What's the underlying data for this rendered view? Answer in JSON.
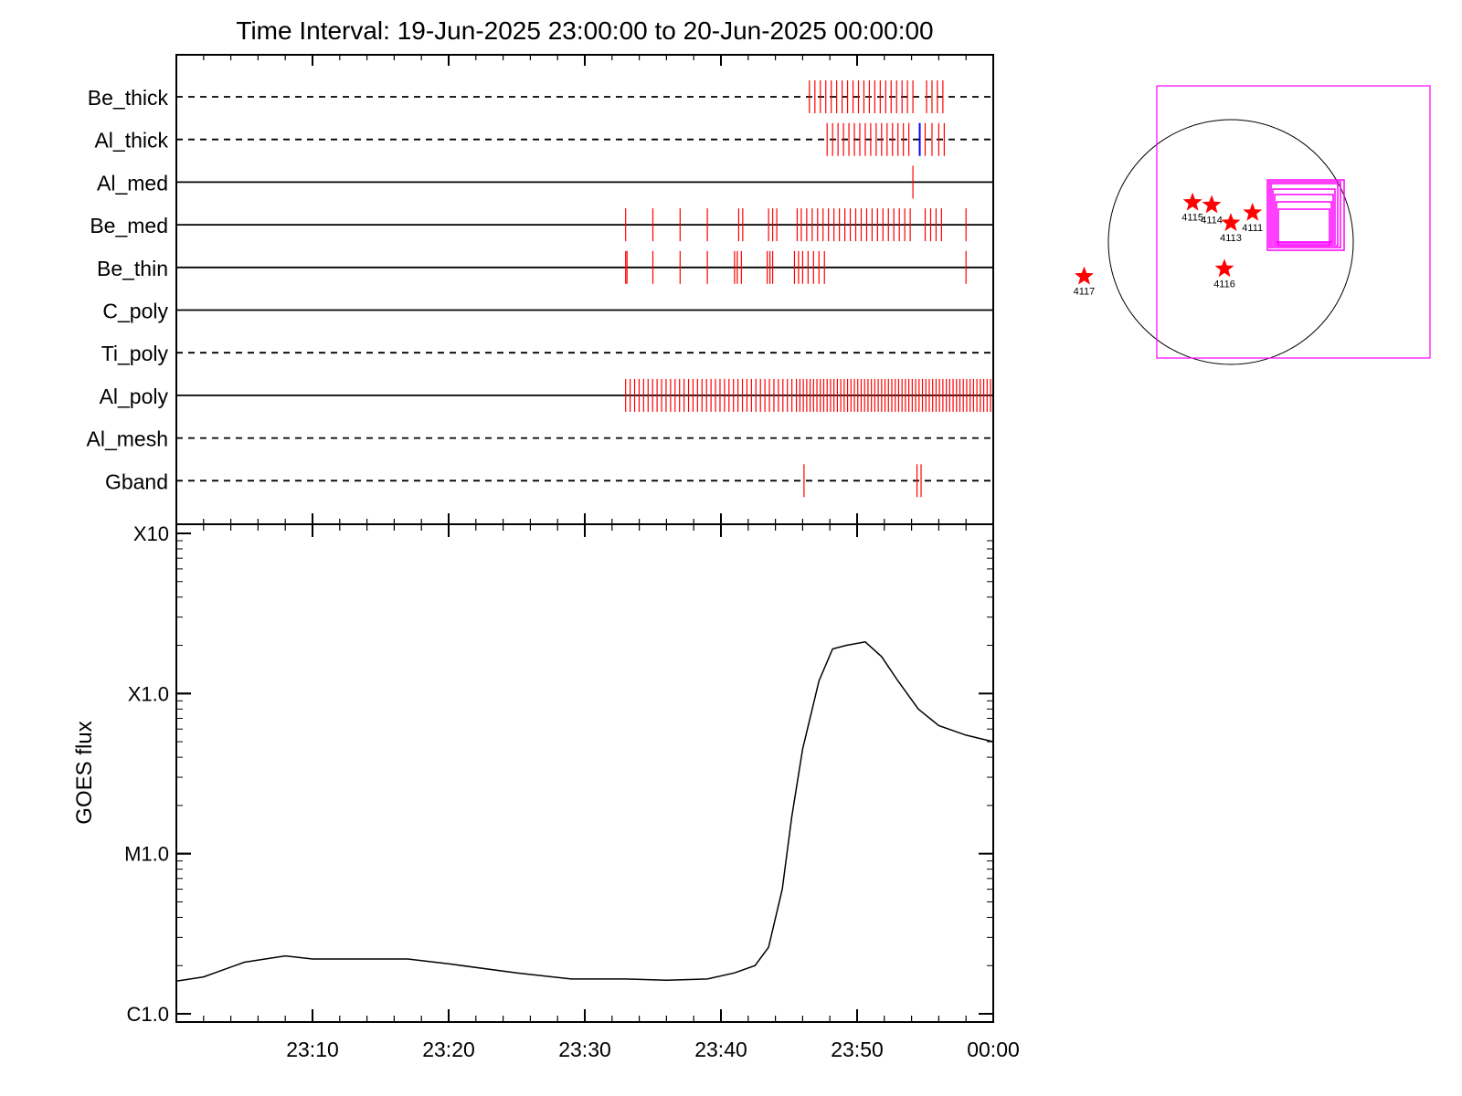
{
  "title": "Time Interval: 19-Jun-2025 23:00:00 to 20-Jun-2025 00:00:00",
  "chart_data": [
    {
      "type": "timeline",
      "panel": "filter-timeline",
      "xlim": [
        "23:00",
        "00:00"
      ],
      "rows": [
        {
          "label": "Be_thick",
          "line": "dashed",
          "ticks": [
            46.5,
            46.9,
            47.3,
            47.7,
            48.1,
            48.5,
            48.9,
            49.3,
            49.7,
            50.1,
            50.5,
            50.9,
            51.3,
            51.7,
            52.1,
            52.5,
            52.9,
            53.3,
            53.7,
            54.1,
            55.1,
            55.5,
            55.9,
            56.3
          ]
        },
        {
          "label": "Al_thick",
          "line": "dashed",
          "ticks": [
            47.8,
            48.2,
            48.6,
            49.0,
            49.4,
            49.8,
            50.2,
            50.6,
            51.0,
            51.4,
            51.8,
            52.2,
            52.6,
            53.0,
            53.4,
            53.8,
            55.0,
            55.5,
            56.0,
            56.4
          ],
          "highlight_ticks": [
            54.6
          ]
        },
        {
          "label": "Al_med",
          "line": "solid",
          "ticks": [
            54.1
          ]
        },
        {
          "label": "Be_med",
          "line": "solid",
          "ticks": [
            33.0,
            35.0,
            37.0,
            39.0,
            41.3,
            41.6,
            43.5,
            43.8,
            44.1,
            45.6,
            45.9,
            46.3,
            46.7,
            47.1,
            47.5,
            47.9,
            48.3,
            48.7,
            49.1,
            49.5,
            49.9,
            50.3,
            50.7,
            51.1,
            51.5,
            51.9,
            52.3,
            52.7,
            53.1,
            53.5,
            53.9,
            55.0,
            55.4,
            55.8,
            56.2,
            58.0
          ]
        },
        {
          "label": "Be_thin",
          "line": "solid",
          "ticks": [
            33.0,
            33.1,
            35.0,
            37.0,
            39.0,
            41.0,
            41.2,
            41.5,
            43.4,
            43.6,
            43.8,
            45.4,
            45.7,
            46.0,
            46.4,
            46.8,
            47.2,
            47.6,
            58.0
          ]
        },
        {
          "label": "C_poly",
          "line": "solid",
          "ticks": []
        },
        {
          "label": "Ti_poly",
          "line": "dashed",
          "ticks": []
        },
        {
          "label": "Al_poly",
          "line": "solid",
          "ticks_range": {
            "from": 33.0,
            "to": 45.8,
            "step": 0.33,
            "extra_from": 45.8,
            "extra_to": 60.0,
            "extra_step": 0.25
          }
        },
        {
          "label": "Al_mesh",
          "line": "dashed",
          "ticks": []
        },
        {
          "label": "Gband",
          "line": "dashed",
          "ticks": [
            46.1,
            54.4,
            54.7
          ]
        }
      ],
      "tick_color": "#ff0000",
      "highlight_color": "#0000ff"
    },
    {
      "type": "line",
      "panel": "goes-flux",
      "ylabel": "GOES flux",
      "yscale": "log",
      "ylim": [
        1e-06,
        0.001
      ],
      "ytick_labels": [
        {
          "value": 1e-06,
          "label": "C1.0"
        },
        {
          "value": 1e-05,
          "label": "M1.0"
        },
        {
          "value": 0.0001,
          "label": "X1.0"
        },
        {
          "value": 0.001,
          "label": "X10"
        }
      ],
      "xlim": [
        0,
        60
      ],
      "xtick_labels": [
        {
          "value": 10,
          "label": "23:10"
        },
        {
          "value": 20,
          "label": "23:20"
        },
        {
          "value": 30,
          "label": "23:30"
        },
        {
          "value": 40,
          "label": "23:40"
        },
        {
          "value": 50,
          "label": "23:50"
        },
        {
          "value": 60,
          "label": "00:00"
        }
      ],
      "series": [
        {
          "color": "#000000",
          "x": [
            0,
            2,
            5,
            8,
            10,
            14,
            17,
            20,
            25,
            29,
            33,
            36,
            39,
            41,
            42.5,
            43.5,
            44.5,
            45.2,
            46,
            47.2,
            48.2,
            49.2,
            50.6,
            51.8,
            53,
            54.5,
            56,
            58,
            60
          ],
          "y": [
            1.6e-06,
            1.7e-06,
            2.1e-06,
            2.3e-06,
            2.2e-06,
            2.2e-06,
            2.2e-06,
            2.05e-06,
            1.8e-06,
            1.65e-06,
            1.65e-06,
            1.62e-06,
            1.65e-06,
            1.8e-06,
            2e-06,
            2.6e-06,
            6e-06,
            1.7e-05,
            4.5e-05,
            0.00012,
            0.00019,
            0.0002,
            0.00021,
            0.00017,
            0.00012,
            8e-05,
            6.3e-05,
            5.5e-05,
            5e-05
          ]
        }
      ]
    },
    {
      "type": "scatter",
      "panel": "sun-map",
      "markers": [
        {
          "label": "4115",
          "x": -300,
          "y": 310
        },
        {
          "label": "4114",
          "x": -150,
          "y": 290
        },
        {
          "label": "4113",
          "x": 0,
          "y": 150
        },
        {
          "label": "4111",
          "x": 170,
          "y": 230
        },
        {
          "label": "4116",
          "x": -50,
          "y": -210
        },
        {
          "label": "4117",
          "x": -1150,
          "y": -270
        }
      ],
      "marker_color": "#ff0000",
      "box_color": "#ff00ff"
    }
  ]
}
